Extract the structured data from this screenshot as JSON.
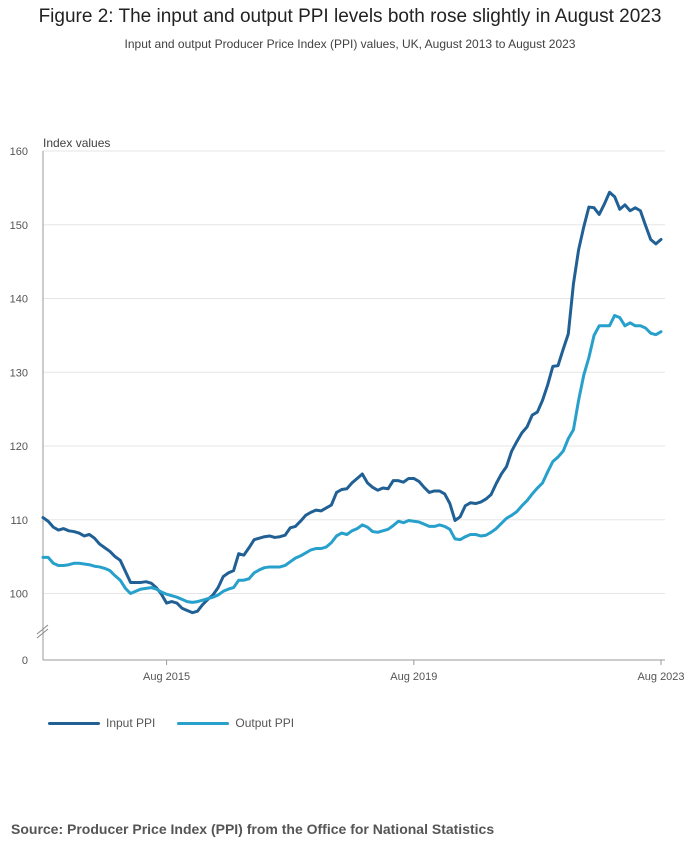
{
  "title": "Figure 2: The input and output PPI levels both rose slightly in August 2023",
  "subtitle": "Input and output Producer Price Index (PPI) values, UK, August 2013 to August 2023",
  "source": "Source: Producer Price Index (PPI) from the Office for National Statistics",
  "colors": {
    "input": "#206095",
    "output": "#27a0cc",
    "grid": "#e6e6e6",
    "axis": "#999999"
  },
  "chart_data": {
    "type": "line",
    "title": "Figure 2: The input and output PPI levels both rose slightly in August 2023",
    "subtitle": "Input and output Producer Price Index (PPI) values, UK, August 2013 to August 2023",
    "ylabel": "Index values",
    "xlabel": "",
    "ylim": [
      0,
      160
    ],
    "y_axis_break": true,
    "y_ticks": [
      0,
      100,
      110,
      120,
      130,
      140,
      150,
      160
    ],
    "x_ticks": [
      {
        "label": "Aug 2015",
        "date": "2015-08"
      },
      {
        "label": "Aug 2019",
        "date": "2019-08"
      },
      {
        "label": "Aug 2023",
        "date": "2023-08"
      }
    ],
    "grid": "horizontal",
    "legend_position": "bottom-left",
    "x": [
      "2013-08",
      "2013-09",
      "2013-10",
      "2013-11",
      "2013-12",
      "2014-01",
      "2014-02",
      "2014-03",
      "2014-04",
      "2014-05",
      "2014-06",
      "2014-07",
      "2014-08",
      "2014-09",
      "2014-10",
      "2014-11",
      "2014-12",
      "2015-01",
      "2015-02",
      "2015-03",
      "2015-04",
      "2015-05",
      "2015-06",
      "2015-07",
      "2015-08",
      "2015-09",
      "2015-10",
      "2015-11",
      "2015-12",
      "2016-01",
      "2016-02",
      "2016-03",
      "2016-04",
      "2016-05",
      "2016-06",
      "2016-07",
      "2016-08",
      "2016-09",
      "2016-10",
      "2016-11",
      "2016-12",
      "2017-01",
      "2017-02",
      "2017-03",
      "2017-04",
      "2017-05",
      "2017-06",
      "2017-07",
      "2017-08",
      "2017-09",
      "2017-10",
      "2017-11",
      "2017-12",
      "2018-01",
      "2018-02",
      "2018-03",
      "2018-04",
      "2018-05",
      "2018-06",
      "2018-07",
      "2018-08",
      "2018-09",
      "2018-10",
      "2018-11",
      "2018-12",
      "2019-01",
      "2019-02",
      "2019-03",
      "2019-04",
      "2019-05",
      "2019-06",
      "2019-07",
      "2019-08",
      "2019-09",
      "2019-10",
      "2019-11",
      "2019-12",
      "2020-01",
      "2020-02",
      "2020-03",
      "2020-04",
      "2020-05",
      "2020-06",
      "2020-07",
      "2020-08",
      "2020-09",
      "2020-10",
      "2020-11",
      "2020-12",
      "2021-01",
      "2021-02",
      "2021-03",
      "2021-04",
      "2021-05",
      "2021-06",
      "2021-07",
      "2021-08",
      "2021-09",
      "2021-10",
      "2021-11",
      "2021-12",
      "2022-01",
      "2022-02",
      "2022-03",
      "2022-04",
      "2022-05",
      "2022-06",
      "2022-07",
      "2022-08",
      "2022-09",
      "2022-10",
      "2022-11",
      "2022-12",
      "2023-01",
      "2023-02",
      "2023-03",
      "2023-04",
      "2023-05",
      "2023-06",
      "2023-07",
      "2023-08"
    ],
    "series": [
      {
        "name": "Input PPI",
        "values": [
          110.3,
          109.8,
          109.0,
          108.6,
          108.8,
          108.5,
          108.4,
          108.2,
          107.8,
          108.0,
          107.5,
          106.7,
          106.2,
          105.7,
          105.0,
          104.5,
          103.0,
          101.5,
          101.5,
          101.5,
          101.6,
          101.4,
          100.8,
          99.9,
          98.7,
          98.9,
          98.7,
          98.0,
          97.7,
          97.4,
          97.6,
          98.5,
          99.2,
          99.8,
          100.8,
          102.3,
          102.8,
          103.1,
          105.4,
          105.2,
          106.2,
          107.3,
          107.5,
          107.7,
          107.8,
          107.6,
          107.7,
          107.9,
          108.9,
          109.1,
          109.8,
          110.6,
          111.0,
          111.3,
          111.2,
          111.6,
          112.0,
          113.7,
          114.1,
          114.2,
          115.0,
          115.6,
          116.2,
          115.0,
          114.4,
          114.0,
          114.3,
          114.2,
          115.3,
          115.3,
          115.1,
          115.6,
          115.6,
          115.2,
          114.4,
          113.7,
          113.9,
          113.9,
          113.5,
          112.2,
          109.9,
          110.4,
          111.9,
          112.3,
          112.2,
          112.4,
          112.8,
          113.4,
          114.9,
          116.2,
          117.2,
          119.3,
          120.6,
          121.8,
          122.6,
          124.2,
          124.6,
          126.2,
          128.3,
          130.8,
          130.9,
          133.1,
          135.2,
          142.0,
          146.6,
          149.7,
          152.4,
          152.3,
          151.4,
          152.8,
          154.4,
          153.8,
          152.1,
          152.7,
          151.9,
          152.3,
          151.9,
          149.9,
          148.0,
          147.4,
          148.0
        ]
      },
      {
        "name": "Output PPI",
        "values": [
          104.9,
          104.9,
          104.1,
          103.8,
          103.8,
          103.9,
          104.1,
          104.1,
          104.0,
          103.9,
          103.7,
          103.6,
          103.4,
          103.1,
          102.4,
          101.8,
          100.7,
          100.0,
          100.3,
          100.6,
          100.7,
          100.8,
          100.6,
          100.2,
          99.9,
          99.7,
          99.5,
          99.2,
          98.9,
          98.8,
          98.9,
          99.1,
          99.3,
          99.5,
          99.8,
          100.3,
          100.6,
          100.8,
          101.8,
          101.8,
          102.0,
          102.8,
          103.2,
          103.5,
          103.6,
          103.6,
          103.6,
          103.8,
          104.3,
          104.8,
          105.1,
          105.5,
          105.9,
          106.1,
          106.1,
          106.3,
          106.9,
          107.8,
          108.2,
          108.0,
          108.5,
          108.8,
          109.3,
          109.0,
          108.4,
          108.3,
          108.5,
          108.7,
          109.2,
          109.8,
          109.6,
          109.9,
          109.8,
          109.7,
          109.4,
          109.1,
          109.1,
          109.3,
          109.1,
          108.7,
          107.4,
          107.3,
          107.7,
          108.0,
          108.0,
          107.8,
          107.9,
          108.3,
          108.8,
          109.5,
          110.2,
          110.6,
          111.1,
          111.9,
          112.6,
          113.5,
          114.3,
          115.0,
          116.5,
          117.9,
          118.5,
          119.3,
          121.0,
          122.2,
          126.2,
          129.6,
          132.0,
          135.0,
          136.3,
          136.3,
          136.3,
          137.7,
          137.4,
          136.3,
          136.7,
          136.3,
          136.3,
          136.0,
          135.3,
          135.1,
          135.5
        ]
      }
    ]
  }
}
